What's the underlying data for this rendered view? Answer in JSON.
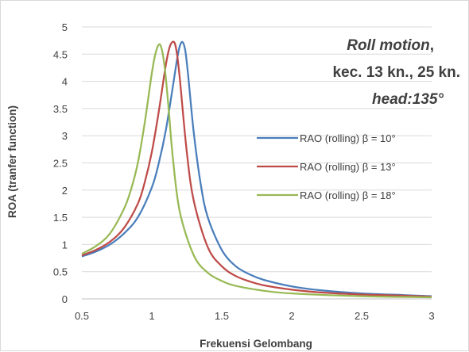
{
  "chart_data": {
    "type": "line",
    "xlabel": "Frekuensi Gelombang",
    "ylabel": "ROA (tranfer function)",
    "xlim": [
      0.5,
      3
    ],
    "ylim": [
      0,
      5
    ],
    "x_ticks": [
      "0.5",
      "1",
      "1.5",
      "2",
      "2.5",
      "3"
    ],
    "y_ticks": [
      "0",
      "0.5",
      "1",
      "1.5",
      "2",
      "2.5",
      "3",
      "3.5",
      "4",
      "4.5",
      "5"
    ],
    "grid": "horizontal",
    "legend_position": "right",
    "annotation": {
      "line1_italic": "Roll motion",
      "line1_tail": ",",
      "line2": "kec. 13 kn., 25 kn.",
      "line3_italic": "head:135°"
    },
    "series": [
      {
        "name": "RAO (rolling) β = 10°",
        "color": "#4a7ebb",
        "x": [
          0.5,
          0.6,
          0.7,
          0.8,
          0.9,
          1.0,
          1.05,
          1.1,
          1.15,
          1.18,
          1.2,
          1.22,
          1.24,
          1.26,
          1.3,
          1.35,
          1.4,
          1.5,
          1.6,
          1.7,
          1.8,
          2.0,
          2.2,
          2.5,
          2.8,
          3.0
        ],
        "y": [
          0.78,
          0.87,
          1.0,
          1.2,
          1.5,
          2.05,
          2.5,
          3.1,
          3.9,
          4.4,
          4.65,
          4.72,
          4.55,
          4.1,
          3.05,
          2.1,
          1.5,
          0.9,
          0.6,
          0.45,
          0.35,
          0.23,
          0.16,
          0.1,
          0.07,
          0.05
        ]
      },
      {
        "name": "RAO (rolling) β = 13°",
        "color": "#be4b48",
        "x": [
          0.5,
          0.6,
          0.7,
          0.8,
          0.9,
          0.95,
          1.0,
          1.05,
          1.1,
          1.13,
          1.16,
          1.18,
          1.2,
          1.25,
          1.3,
          1.4,
          1.5,
          1.6,
          1.7,
          1.8,
          2.0,
          2.2,
          2.5,
          2.8,
          3.0
        ],
        "y": [
          0.8,
          0.9,
          1.05,
          1.3,
          1.75,
          2.15,
          2.7,
          3.45,
          4.3,
          4.65,
          4.72,
          4.5,
          4.05,
          2.7,
          1.8,
          0.95,
          0.6,
          0.42,
          0.32,
          0.25,
          0.17,
          0.12,
          0.08,
          0.06,
          0.04
        ]
      },
      {
        "name": "RAO (rolling) β = 18°",
        "color": "#98b954",
        "x": [
          0.5,
          0.6,
          0.7,
          0.8,
          0.85,
          0.9,
          0.95,
          1.0,
          1.03,
          1.06,
          1.09,
          1.12,
          1.15,
          1.2,
          1.3,
          1.4,
          1.5,
          1.6,
          1.8,
          2.0,
          2.5,
          3.0
        ],
        "y": [
          0.83,
          0.97,
          1.2,
          1.65,
          2.0,
          2.5,
          3.25,
          4.15,
          4.55,
          4.67,
          4.3,
          3.5,
          2.6,
          1.6,
          0.8,
          0.48,
          0.33,
          0.24,
          0.15,
          0.1,
          0.05,
          0.03
        ]
      }
    ]
  }
}
